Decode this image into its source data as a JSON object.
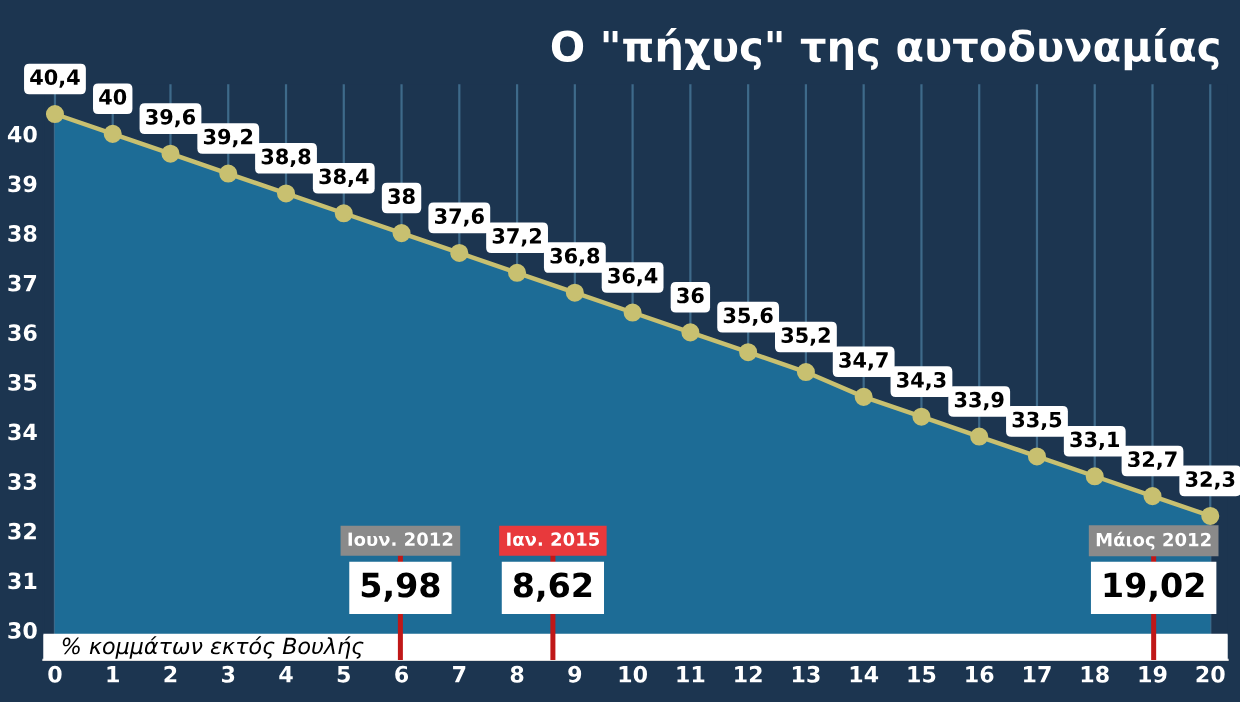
{
  "chart_data": {
    "type": "area",
    "title": "Ο \"πήχυς\" της αυτοδυναμίας",
    "xlabel": "% κομμάτων εκτός Βουλής",
    "x": [
      0,
      1,
      2,
      3,
      4,
      5,
      6,
      7,
      8,
      9,
      10,
      11,
      12,
      13,
      14,
      15,
      16,
      17,
      18,
      19,
      20
    ],
    "series": [
      {
        "color": "#1d6c96",
        "values": [
          40.4,
          40,
          39.6,
          39.2,
          38.8,
          38.4,
          38,
          37.6,
          37.2,
          36.8,
          36.4,
          36,
          35.6,
          35.2,
          34.7,
          34.3,
          33.9,
          33.5,
          33.1,
          32.7,
          32.3
        ]
      },
      {
        "type": "line",
        "marker": "circle",
        "color": "#c8c070",
        "values": [
          40.4,
          40,
          39.6,
          39.2,
          38.8,
          38.4,
          38,
          37.6,
          37.2,
          36.8,
          36.4,
          36,
          35.6,
          35.2,
          34.7,
          34.3,
          33.9,
          33.5,
          33.1,
          32.7,
          32.3
        ],
        "value_labels": [
          "40,4",
          "40",
          "39,6",
          "39,2",
          "38,8",
          "38,4",
          "38",
          "37,6",
          "37,2",
          "36,8",
          "36,4",
          "36",
          "35,6",
          "35,2",
          "34,7",
          "34,3",
          "33,9",
          "33,5",
          "33,1",
          "32,7",
          "32,3"
        ]
      }
    ],
    "xlim": [
      -0.2,
      20.3
    ],
    "ylim": [
      29.4,
      41.0
    ],
    "xticks": [
      0,
      1,
      2,
      3,
      4,
      5,
      6,
      7,
      8,
      9,
      10,
      11,
      12,
      13,
      14,
      15,
      16,
      17,
      18,
      19,
      20
    ],
    "yticks": [
      30,
      31,
      32,
      33,
      34,
      35,
      36,
      37,
      38,
      39,
      40
    ],
    "grid": "x",
    "line_style": "solid",
    "ref_lines": [
      {
        "axis": "x",
        "value": 5.98,
        "label": "Ιουν. 2012",
        "color": "#c01818"
      },
      {
        "axis": "x",
        "value": 8.62,
        "label": "Ιαν. 2015",
        "color": "#c01818"
      },
      {
        "axis": "x",
        "value": 19.02,
        "label": "Μάιος 2012",
        "color": "#c01818"
      }
    ],
    "annotations": [
      "5,98",
      "8,62",
      "19,02"
    ]
  }
}
